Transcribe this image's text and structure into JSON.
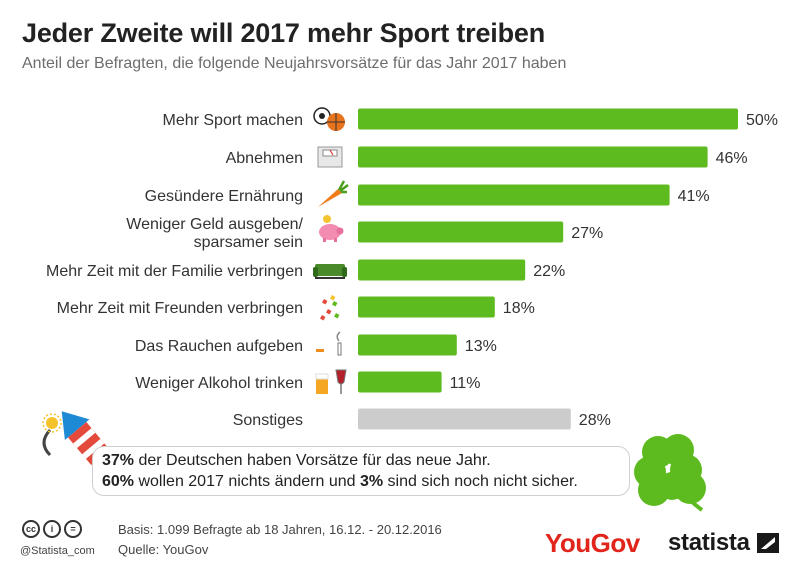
{
  "header": {
    "title": "Jeder Zweite will 2017 mehr Sport treiben",
    "subtitle": "Anteil der Befragten, die folgende Neujahrsvorsätze für das Jahr 2017 haben"
  },
  "chart_data": {
    "type": "bar",
    "orientation": "horizontal",
    "categories": [
      [
        "Mehr Sport machen"
      ],
      [
        "Abnehmen"
      ],
      [
        "Gesündere Ernährung"
      ],
      [
        "Weniger Geld ausgeben/",
        "sparsamer sein"
      ],
      [
        "Mehr Zeit mit der Familie verbringen"
      ],
      [
        "Mehr Zeit mit Freunden verbringen"
      ],
      [
        "Das Rauchen aufgeben"
      ],
      [
        "Weniger Alkohol trinken"
      ],
      [
        "Sonstiges"
      ]
    ],
    "values": [
      50,
      46,
      41,
      27,
      22,
      18,
      13,
      11,
      28
    ],
    "value_labels": [
      "50%",
      "46%",
      "41%",
      "27%",
      "22%",
      "18%",
      "13%",
      "11%",
      "28%"
    ],
    "bar_colors": [
      "#5dbb1f",
      "#5dbb1f",
      "#5dbb1f",
      "#5dbb1f",
      "#5dbb1f",
      "#5dbb1f",
      "#5dbb1f",
      "#5dbb1f",
      "#cccccc"
    ],
    "icons": [
      "sports-balls-icon",
      "scale-icon",
      "carrot-icon",
      "piggy-bank-icon",
      "sofa-icon",
      "confetti-icon",
      "cigarette-icon",
      "beer-wine-icon",
      ""
    ],
    "xlim": [
      0,
      50
    ],
    "grid": false
  },
  "note": {
    "line1_bold": "37%",
    "line1_rest": " der Deutschen haben Vorsätze für das neue Jahr.",
    "line2_bold1": "60%",
    "line2_mid": " wollen 2017 nichts ändern und ",
    "line2_bold2": "3%",
    "line2_rest": " sind sich noch nicht sicher."
  },
  "footer": {
    "basis": "Basis: 1.099 Befragte ab 18 Jahren, 16.12. - 20.12.2016",
    "source": "Quelle: YouGov",
    "handle": "@Statista_com",
    "cc_icons": [
      "cc",
      "i",
      "="
    ],
    "yougov": "YouGov",
    "statista": "statista"
  },
  "colors": {
    "bar_green": "#5dbb1f",
    "bar_grey": "#cccccc",
    "yougov_red": "#e2251b"
  }
}
